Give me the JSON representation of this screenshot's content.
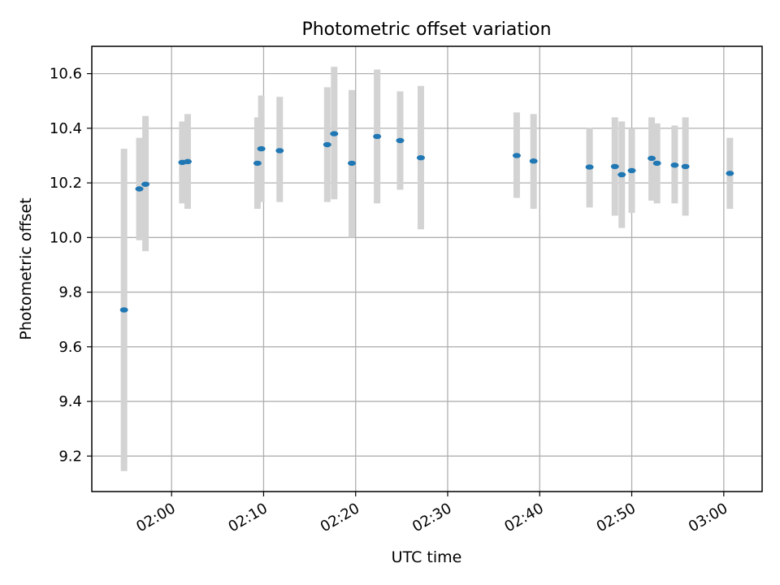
{
  "chart_data": {
    "type": "scatter",
    "title": "Photometric offset variation",
    "xlabel": "UTC time",
    "ylabel": "Photometric offset",
    "xlim": [
      "01:51:20",
      "03:04:10"
    ],
    "ylim": [
      9.07,
      10.7
    ],
    "x_ticks": [
      "02:00",
      "02:10",
      "02:20",
      "02:30",
      "02:40",
      "02:50",
      "03:00"
    ],
    "y_ticks": [
      9.2,
      9.4,
      9.6,
      9.8,
      10.0,
      10.2,
      10.4,
      10.6
    ],
    "grid": true,
    "colors": {
      "marker": "#1f77b4",
      "errorbar": "#d3d3d3"
    },
    "series": [
      {
        "points": [
          {
            "t": "01:54:50",
            "y": 9.735,
            "low": 9.145,
            "high": 10.325
          },
          {
            "t": "01:56:30",
            "y": 10.178,
            "low": 9.99,
            "high": 10.365
          },
          {
            "t": "01:57:10",
            "y": 10.195,
            "low": 9.95,
            "high": 10.445
          },
          {
            "t": "02:01:10",
            "y": 10.275,
            "low": 10.125,
            "high": 10.425
          },
          {
            "t": "02:01:45",
            "y": 10.278,
            "low": 10.105,
            "high": 10.452
          },
          {
            "t": "02:09:20",
            "y": 10.272,
            "low": 10.105,
            "high": 10.44
          },
          {
            "t": "02:09:45",
            "y": 10.325,
            "low": 10.13,
            "high": 10.52
          },
          {
            "t": "02:11:45",
            "y": 10.318,
            "low": 10.13,
            "high": 10.515
          },
          {
            "t": "02:16:55",
            "y": 10.34,
            "low": 10.13,
            "high": 10.55
          },
          {
            "t": "02:17:40",
            "y": 10.38,
            "low": 10.14,
            "high": 10.625
          },
          {
            "t": "02:19:35",
            "y": 10.272,
            "low": 10.0,
            "high": 10.54
          },
          {
            "t": "02:22:20",
            "y": 10.37,
            "low": 10.125,
            "high": 10.615
          },
          {
            "t": "02:24:50",
            "y": 10.355,
            "low": 10.175,
            "high": 10.535
          },
          {
            "t": "02:27:05",
            "y": 10.292,
            "low": 10.03,
            "high": 10.555
          },
          {
            "t": "02:37:30",
            "y": 10.3,
            "low": 10.145,
            "high": 10.458
          },
          {
            "t": "02:39:20",
            "y": 10.28,
            "low": 10.105,
            "high": 10.452
          },
          {
            "t": "02:45:25",
            "y": 10.258,
            "low": 10.11,
            "high": 10.402
          },
          {
            "t": "02:48:10",
            "y": 10.26,
            "low": 10.08,
            "high": 10.44
          },
          {
            "t": "02:48:55",
            "y": 10.23,
            "low": 10.035,
            "high": 10.425
          },
          {
            "t": "02:50:00",
            "y": 10.245,
            "low": 10.09,
            "high": 10.4
          },
          {
            "t": "02:52:10",
            "y": 10.29,
            "low": 10.135,
            "high": 10.44
          },
          {
            "t": "02:52:45",
            "y": 10.272,
            "low": 10.125,
            "high": 10.418
          },
          {
            "t": "02:54:40",
            "y": 10.265,
            "low": 10.125,
            "high": 10.41
          },
          {
            "t": "02:55:50",
            "y": 10.26,
            "low": 10.08,
            "high": 10.44
          },
          {
            "t": "03:00:40",
            "y": 10.235,
            "low": 10.105,
            "high": 10.365
          }
        ]
      }
    ]
  }
}
